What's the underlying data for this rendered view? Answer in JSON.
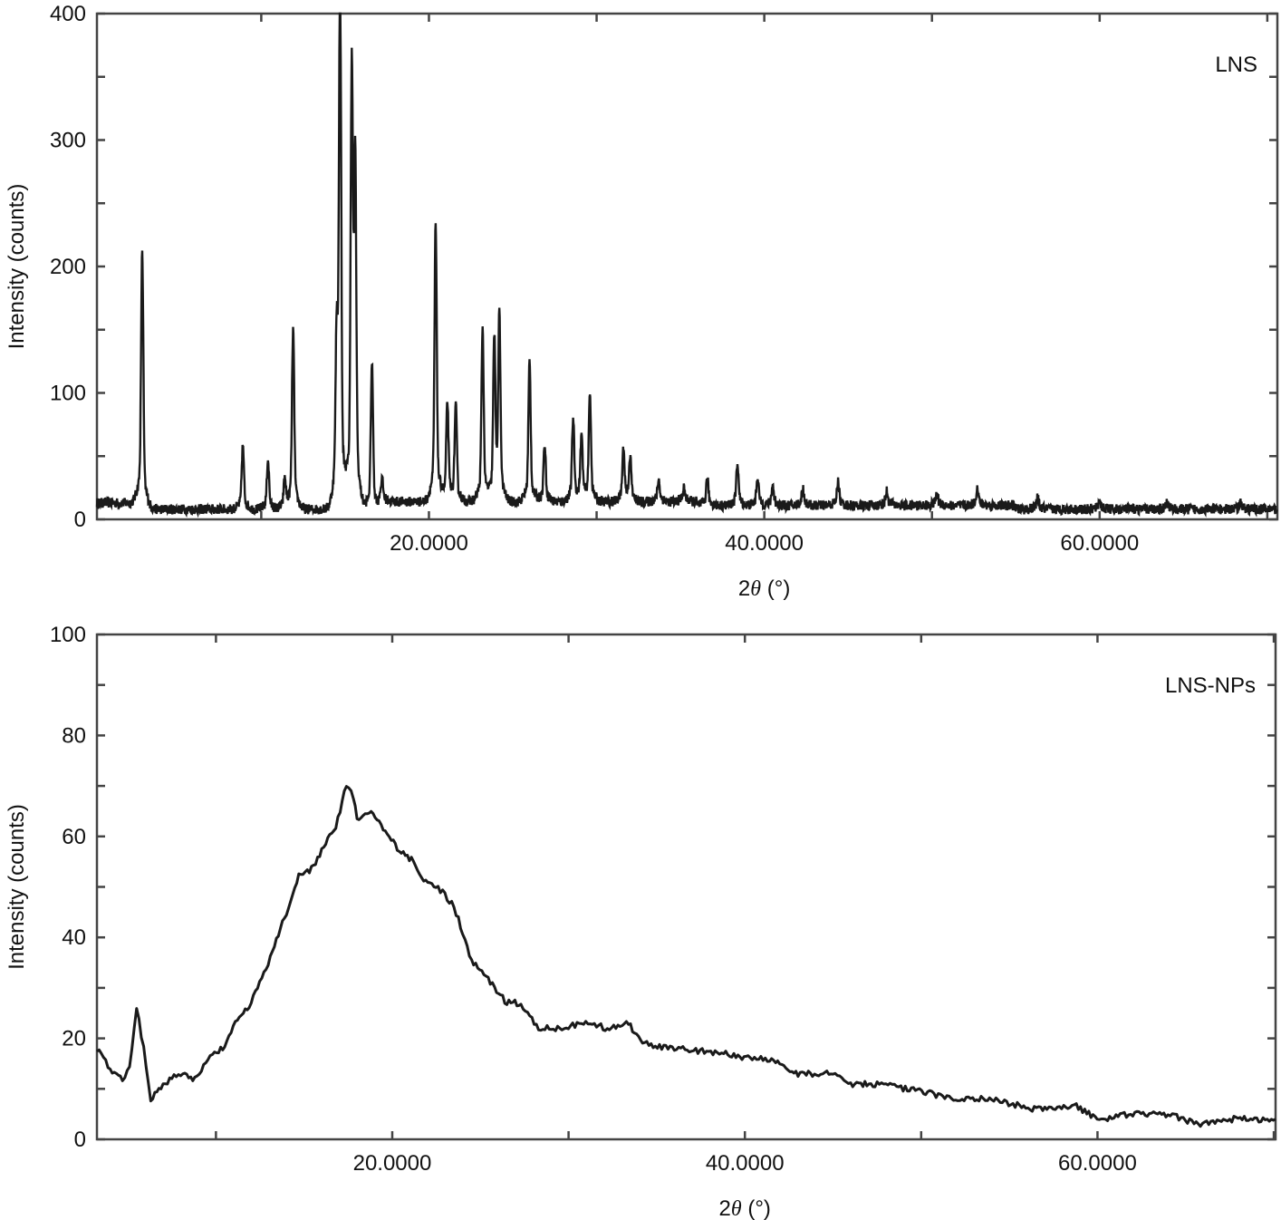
{
  "figure": {
    "panels": [
      {
        "id": "top",
        "sample_label": "LNS",
        "xlabel_prefix": "2",
        "xlabel_theta": "θ",
        "xlabel_suffix": " (°)",
        "ylabel": "Intensity (counts)",
        "x_tick_labels": [
          "20.0000",
          "40.0000",
          "60.0000"
        ],
        "y_tick_labels": [
          "0",
          "100",
          "200",
          "300",
          "400"
        ]
      },
      {
        "id": "bottom",
        "sample_label": "LNS-NPs",
        "xlabel_prefix": "2",
        "xlabel_theta": "θ",
        "xlabel_suffix": " (°)",
        "ylabel": "Intensity (counts)",
        "x_tick_labels": [
          "20.0000",
          "40.0000",
          "60.0000"
        ],
        "y_tick_labels": [
          "0",
          "20",
          "40",
          "60",
          "80",
          "100"
        ]
      }
    ]
  },
  "chart_data": [
    {
      "type": "line",
      "title": "LNS",
      "xlabel": "2θ (°)",
      "ylabel": "Intensity (counts)",
      "xlim": [
        0.2,
        70.6
      ],
      "ylim": [
        0,
        400
      ],
      "x_ticks": [
        20,
        40,
        60
      ],
      "x_tick_labels": [
        "20.0000",
        "40.0000",
        "60.0000"
      ],
      "y_ticks": [
        0,
        100,
        200,
        300,
        400
      ],
      "y_minor_step": 50,
      "x_minor_step": 10,
      "grid": false,
      "legend": "none (sample label top-right inside plot)",
      "color": "#1a1a1a",
      "baseline": 8,
      "peaks": [
        {
          "x": 2.9,
          "y": 190
        },
        {
          "x": 8.9,
          "y": 52
        },
        {
          "x": 10.4,
          "y": 42
        },
        {
          "x": 11.4,
          "y": 28
        },
        {
          "x": 11.9,
          "y": 134
        },
        {
          "x": 14.5,
          "y": 120
        },
        {
          "x": 14.7,
          "y": 378
        },
        {
          "x": 15.4,
          "y": 312
        },
        {
          "x": 15.6,
          "y": 245
        },
        {
          "x": 16.6,
          "y": 110
        },
        {
          "x": 17.2,
          "y": 28
        },
        {
          "x": 20.4,
          "y": 209
        },
        {
          "x": 21.1,
          "y": 82
        },
        {
          "x": 21.6,
          "y": 80
        },
        {
          "x": 23.2,
          "y": 135
        },
        {
          "x": 23.9,
          "y": 124
        },
        {
          "x": 24.2,
          "y": 140
        },
        {
          "x": 26.0,
          "y": 111
        },
        {
          "x": 26.9,
          "y": 53
        },
        {
          "x": 28.6,
          "y": 71
        },
        {
          "x": 29.1,
          "y": 58
        },
        {
          "x": 29.6,
          "y": 88
        },
        {
          "x": 31.6,
          "y": 49
        },
        {
          "x": 32.0,
          "y": 44
        },
        {
          "x": 33.7,
          "y": 28
        },
        {
          "x": 35.2,
          "y": 22
        },
        {
          "x": 36.6,
          "y": 29
        },
        {
          "x": 38.4,
          "y": 40
        },
        {
          "x": 39.6,
          "y": 30
        },
        {
          "x": 40.5,
          "y": 24
        },
        {
          "x": 42.3,
          "y": 22
        },
        {
          "x": 44.4,
          "y": 27
        },
        {
          "x": 47.3,
          "y": 20
        },
        {
          "x": 50.3,
          "y": 18
        },
        {
          "x": 52.7,
          "y": 22
        },
        {
          "x": 56.3,
          "y": 15
        },
        {
          "x": 60.0,
          "y": 13
        },
        {
          "x": 64.0,
          "y": 12
        },
        {
          "x": 68.4,
          "y": 12
        }
      ]
    },
    {
      "type": "line",
      "title": "LNS-NPs",
      "xlabel": "2θ (°)",
      "ylabel": "Intensity (counts)",
      "xlim": [
        3.25,
        70.1
      ],
      "ylim": [
        0,
        100
      ],
      "x_ticks": [
        20,
        40,
        60
      ],
      "x_tick_labels": [
        "20.0000",
        "40.0000",
        "60.0000"
      ],
      "y_ticks": [
        0,
        20,
        40,
        60,
        80,
        100
      ],
      "y_minor_step": 10,
      "x_minor_step": 10,
      "grid": false,
      "legend": "none (sample label top-right inside plot)",
      "color": "#1a1a1a",
      "x": [
        3.25,
        4.0,
        4.7,
        5.1,
        5.5,
        5.9,
        6.3,
        7.0,
        8.0,
        8.8,
        9.8,
        10.5,
        11.1,
        12.0,
        13.2,
        14.0,
        14.7,
        15.3,
        16.0,
        16.8,
        17.4,
        17.8,
        18.0,
        18.8,
        19.6,
        20.4,
        21.2,
        21.9,
        22.6,
        23.5,
        24.0,
        24.5,
        25.2,
        25.8,
        26.5,
        27.3,
        28.3,
        29.5,
        31.1,
        32.2,
        33.4,
        34.2,
        36.0,
        38.8,
        40.3,
        41.4,
        42.9,
        45.0,
        46.0,
        47.5,
        49.1,
        50.6,
        52.2,
        54.0,
        56.3,
        58.8,
        60.1,
        62.0,
        64.0,
        65.6,
        67.5,
        70.1
      ],
      "y": [
        18,
        14,
        12,
        14,
        26,
        18,
        8,
        11,
        13,
        12,
        17,
        18,
        23,
        27,
        37,
        45,
        52,
        53,
        57,
        62,
        70,
        68,
        63,
        65,
        61,
        57,
        55,
        51,
        50,
        46,
        41,
        35,
        33,
        30,
        27,
        27,
        22,
        22,
        23,
        22,
        23,
        19,
        18,
        17,
        16,
        16,
        13,
        13,
        11,
        11,
        10,
        9,
        8,
        8,
        6,
        6.5,
        4,
        5,
        5,
        3,
        4,
        4
      ]
    }
  ]
}
